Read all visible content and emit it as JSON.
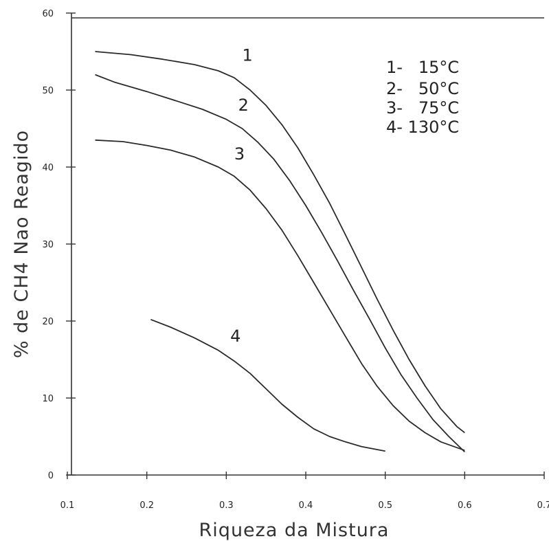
{
  "chart_data": {
    "type": "line",
    "xlabel": "Riqueza da Mistura",
    "ylabel": "% de CH4 Nao Reagido",
    "xlim": [
      0.1,
      0.7
    ],
    "ylim": [
      0,
      60
    ],
    "x_ticks": [
      "0.1",
      "0.2",
      "0.3",
      "0.4",
      "0.5",
      "0.6",
      "0.7"
    ],
    "y_ticks": [
      "0",
      "10",
      "20",
      "30",
      "40",
      "50",
      "60"
    ],
    "grid": false,
    "legend": {
      "position": "top-right",
      "entries": [
        "1-   15°C",
        "2-   50°C",
        "3-   75°C",
        "4- 130°C"
      ]
    },
    "series": [
      {
        "name": "1",
        "x": [
          0.135,
          0.18,
          0.22,
          0.26,
          0.29,
          0.31,
          0.33,
          0.35,
          0.37,
          0.39,
          0.41,
          0.43,
          0.45,
          0.47,
          0.49,
          0.51,
          0.53,
          0.55,
          0.57,
          0.59,
          0.6
        ],
        "y": [
          55.0,
          54.6,
          54.0,
          53.3,
          52.5,
          51.6,
          50.0,
          48.0,
          45.5,
          42.5,
          39.0,
          35.3,
          31.2,
          27.0,
          22.8,
          18.8,
          15.0,
          11.6,
          8.6,
          6.3,
          5.5
        ]
      },
      {
        "name": "2",
        "x": [
          0.135,
          0.16,
          0.2,
          0.24,
          0.27,
          0.3,
          0.32,
          0.34,
          0.36,
          0.38,
          0.4,
          0.42,
          0.44,
          0.46,
          0.48,
          0.5,
          0.52,
          0.54,
          0.56,
          0.58,
          0.6
        ],
        "y": [
          52.0,
          51.0,
          49.8,
          48.5,
          47.5,
          46.2,
          45.0,
          43.2,
          41.0,
          38.2,
          35.0,
          31.5,
          27.8,
          24.0,
          20.3,
          16.5,
          13.0,
          10.0,
          7.2,
          5.0,
          3.0
        ]
      },
      {
        "name": "3",
        "x": [
          0.135,
          0.17,
          0.2,
          0.23,
          0.26,
          0.29,
          0.31,
          0.33,
          0.35,
          0.37,
          0.39,
          0.41,
          0.43,
          0.45,
          0.47,
          0.49,
          0.51,
          0.53,
          0.55,
          0.57,
          0.6
        ],
        "y": [
          43.5,
          43.3,
          42.8,
          42.2,
          41.3,
          40.0,
          38.8,
          37.0,
          34.6,
          31.8,
          28.5,
          25.0,
          21.5,
          18.0,
          14.5,
          11.5,
          9.0,
          7.0,
          5.5,
          4.3,
          3.2
        ]
      },
      {
        "name": "4",
        "x": [
          0.205,
          0.23,
          0.26,
          0.29,
          0.31,
          0.33,
          0.35,
          0.37,
          0.39,
          0.41,
          0.43,
          0.45,
          0.47,
          0.5
        ],
        "y": [
          20.2,
          19.2,
          17.8,
          16.2,
          14.8,
          13.2,
          11.2,
          9.2,
          7.5,
          6.0,
          5.0,
          4.3,
          3.7,
          3.1
        ]
      }
    ],
    "curve_labels": [
      {
        "text": "1",
        "x": 0.32,
        "y": 53.8
      },
      {
        "text": "2",
        "x": 0.315,
        "y": 47.3
      },
      {
        "text": "3",
        "x": 0.31,
        "y": 41.0
      },
      {
        "text": "4",
        "x": 0.305,
        "y": 17.3
      }
    ]
  }
}
